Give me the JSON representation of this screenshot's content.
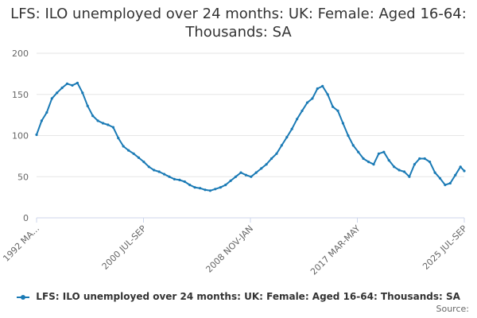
{
  "chart_data": {
    "type": "line",
    "title": "LFS: ILO unemployed over 24 months: UK: Female: Aged 16-64: Thousands: SA",
    "xlabel": "",
    "ylabel": "",
    "ylim": [
      0,
      200
    ],
    "yticks": [
      "0",
      "50",
      "100",
      "150",
      "200"
    ],
    "xtick_labels": [
      "1992 MA...",
      "2000 JUL-SEP",
      "2008 NOV-JAN",
      "2017 MAR-MAY",
      "2025 JUL-SEP"
    ],
    "grid": true,
    "legend_position": "bottom",
    "series": [
      {
        "name": "LFS: ILO unemployed over 24 months: UK: Female: Aged 16-64: Thousands: SA",
        "color": "#1a7ab5",
        "x": [
          1992.2,
          1992.6,
          1993.0,
          1993.4,
          1993.8,
          1994.2,
          1994.6,
          1995.0,
          1995.4,
          1995.8,
          1996.2,
          1996.6,
          1997.0,
          1997.4,
          1997.8,
          1998.2,
          1998.6,
          1999.0,
          1999.4,
          1999.8,
          2000.2,
          2000.6,
          2001.0,
          2001.4,
          2001.8,
          2002.2,
          2002.6,
          2003.0,
          2003.4,
          2003.8,
          2004.2,
          2004.6,
          2005.0,
          2005.4,
          2005.8,
          2006.2,
          2006.6,
          2007.0,
          2007.4,
          2007.8,
          2008.2,
          2008.6,
          2009.0,
          2009.4,
          2009.8,
          2010.2,
          2010.6,
          2011.0,
          2011.4,
          2011.8,
          2012.2,
          2012.6,
          2013.0,
          2013.4,
          2013.8,
          2014.2,
          2014.6,
          2015.0,
          2015.4,
          2015.8,
          2016.2,
          2016.6,
          2017.0,
          2017.4,
          2017.8,
          2018.2,
          2018.6,
          2019.0,
          2019.4,
          2019.8,
          2020.2,
          2020.6,
          2021.0,
          2021.4,
          2021.8,
          2022.2,
          2022.6,
          2023.0,
          2023.4,
          2023.8,
          2024.2,
          2024.6,
          2025.0,
          2025.4,
          2025.7
        ],
        "values": [
          101,
          118,
          128,
          145,
          152,
          158,
          163,
          161,
          164,
          152,
          136,
          124,
          118,
          115,
          113,
          110,
          97,
          87,
          82,
          78,
          73,
          68,
          62,
          58,
          56,
          53,
          50,
          47,
          46,
          44,
          40,
          37,
          36,
          34,
          33,
          35,
          37,
          40,
          45,
          50,
          55,
          52,
          50,
          55,
          60,
          65,
          72,
          78,
          88,
          98,
          108,
          120,
          130,
          140,
          145,
          157,
          160,
          150,
          135,
          130,
          115,
          100,
          88,
          80,
          72,
          68,
          65,
          78,
          80,
          70,
          62,
          58,
          56,
          50,
          65,
          72,
          72,
          68,
          55,
          48,
          40,
          42,
          52,
          62,
          57
        ]
      }
    ]
  },
  "credits": "Source:"
}
